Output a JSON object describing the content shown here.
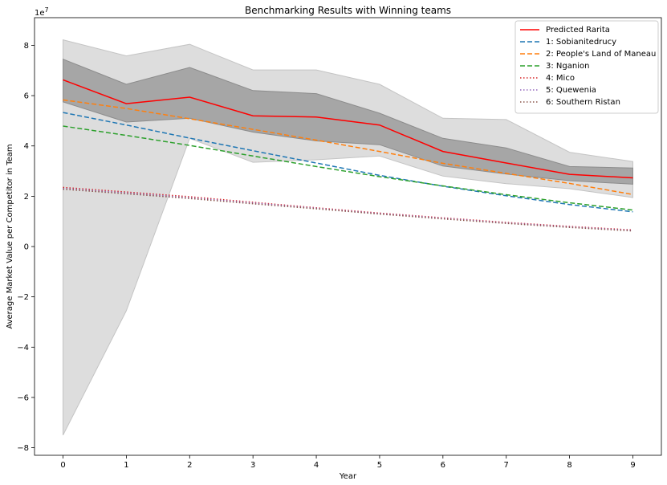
{
  "chart_data": {
    "type": "line",
    "title": "Benchmarking Results with Winning teams",
    "xlabel": "Year",
    "ylabel": "Average Market Value per Competitor in Team",
    "y_offset_label": "1e7",
    "xlim": [
      -0.45,
      9.45
    ],
    "ylim": [
      -8.3,
      9.1
    ],
    "x_ticks": [
      0,
      1,
      2,
      3,
      4,
      5,
      6,
      7,
      8,
      9
    ],
    "y_ticks": [
      -8,
      -6,
      -4,
      -2,
      0,
      2,
      4,
      6,
      8
    ],
    "y_unit_multiplier": 10000000,
    "x": [
      0,
      1,
      2,
      3,
      4,
      5,
      6,
      7,
      8,
      9
    ],
    "bands": [
      {
        "color": "#dddddd",
        "stroke": "#c4c4c4",
        "upper": [
          8.22,
          7.58,
          8.04,
          7.02,
          7.02,
          6.45,
          5.1,
          5.05,
          3.75,
          3.38
        ],
        "lower": [
          -7.5,
          -2.55,
          4.3,
          3.35,
          3.45,
          3.6,
          2.8,
          2.5,
          2.3,
          1.95
        ]
      },
      {
        "color": "#a6a6a6",
        "stroke": "#8c8c8c",
        "upper": [
          7.45,
          6.45,
          7.12,
          6.2,
          6.08,
          5.3,
          4.3,
          3.92,
          3.18,
          3.12
        ],
        "lower": [
          5.75,
          4.95,
          5.1,
          4.55,
          4.2,
          4.05,
          3.2,
          2.88,
          2.62,
          2.48
        ]
      }
    ],
    "series": [
      {
        "name": "Predicted Rarita",
        "color": "#ff0000",
        "style": "solid",
        "values": [
          6.63,
          5.68,
          5.94,
          5.2,
          5.15,
          4.83,
          3.78,
          3.32,
          2.87,
          2.73
        ]
      },
      {
        "name": "1: Sobianitedrucy",
        "color": "#1f77b4",
        "style": "dashed",
        "values": [
          5.33,
          4.83,
          4.31,
          3.81,
          3.32,
          2.83,
          2.4,
          2.02,
          1.67,
          1.38
        ]
      },
      {
        "name": "2: People's Land of Maneau",
        "color": "#ff7f0e",
        "style": "dashed",
        "values": [
          5.83,
          5.49,
          5.08,
          4.66,
          4.23,
          3.78,
          3.31,
          2.91,
          2.51,
          2.07
        ]
      },
      {
        "name": "3: Nganion",
        "color": "#2ca02c",
        "style": "dashed",
        "values": [
          4.79,
          4.42,
          4.02,
          3.6,
          3.18,
          2.78,
          2.41,
          2.06,
          1.74,
          1.45
        ]
      },
      {
        "name": "4: Mico",
        "color": "#d62728",
        "style": "dotted",
        "values": [
          2.35,
          2.17,
          1.98,
          1.76,
          1.54,
          1.33,
          1.14,
          0.96,
          0.8,
          0.66
        ]
      },
      {
        "name": "5: Quewenia",
        "color": "#9467bd",
        "style": "dotted",
        "values": [
          2.31,
          2.13,
          1.94,
          1.73,
          1.52,
          1.31,
          1.12,
          0.94,
          0.78,
          0.64
        ]
      },
      {
        "name": "6: Southern Ristan",
        "color": "#8c564b",
        "style": "dotted",
        "values": [
          2.28,
          2.1,
          1.91,
          1.7,
          1.5,
          1.29,
          1.1,
          0.92,
          0.76,
          0.62
        ]
      }
    ],
    "legend_position": "upper right",
    "grid": false
  }
}
